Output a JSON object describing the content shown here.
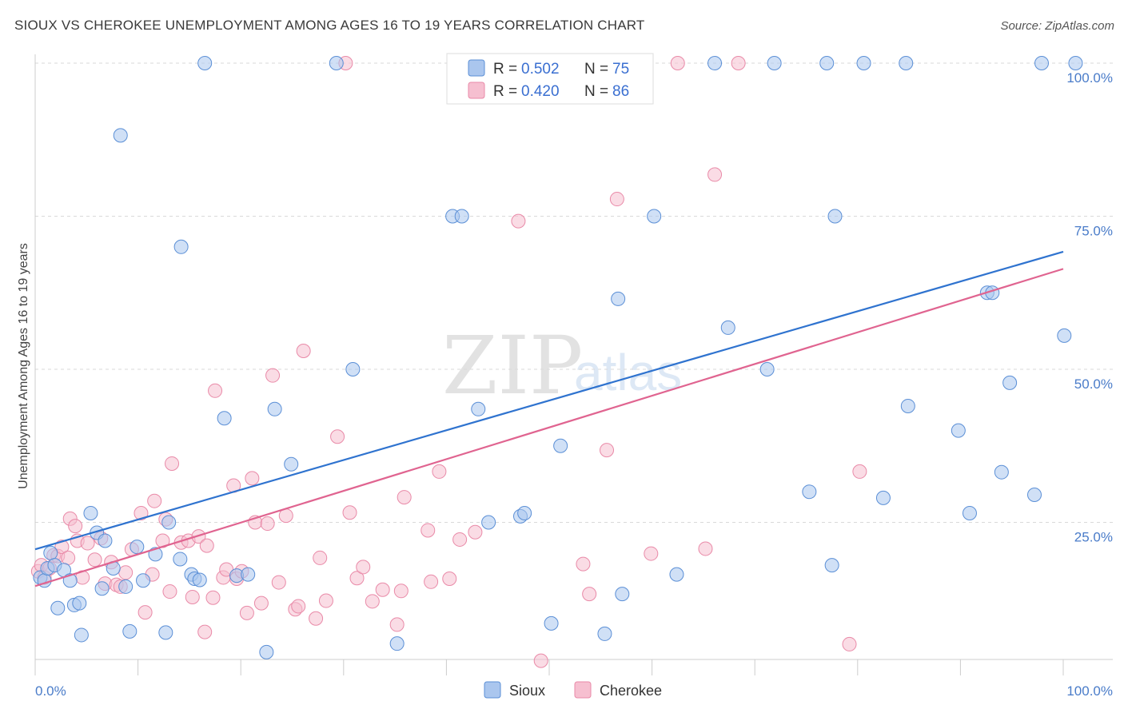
{
  "header": {
    "title": "SIOUX VS CHEROKEE UNEMPLOYMENT AMONG AGES 16 TO 19 YEARS CORRELATION CHART",
    "source": "Source: ZipAtlas.com"
  },
  "watermark": {
    "zip": "ZIP",
    "atlas": "atlas"
  },
  "legend": {
    "r_label": "R =",
    "n_label": "N =",
    "sioux": {
      "r": "0.502",
      "n": "75"
    },
    "cherokee": {
      "r": "0.420",
      "n": "86"
    }
  },
  "colors": {
    "sioux_fill": "#aac6ee",
    "sioux_stroke": "#5b8fd6",
    "sioux_line": "#2f73cf",
    "cherokee_fill": "#f6bfd0",
    "cherokee_stroke": "#e98aa8",
    "cherokee_line": "#e06490",
    "grid": "#d9d9d9",
    "tick_label": "#4a7cc9"
  },
  "chart_data": {
    "type": "scatter",
    "title": "SIOUX VS CHEROKEE UNEMPLOYMENT AMONG AGES 16 TO 19 YEARS CORRELATION CHART",
    "xlabel": "",
    "ylabel": "Unemployment Among Ages 16 to 19 years",
    "xlim": [
      0,
      100
    ],
    "ylim": [
      0,
      100
    ],
    "x_tick_labels": [
      "0.0%",
      "100.0%"
    ],
    "y_tick_labels": [
      "25.0%",
      "50.0%",
      "75.0%",
      "100.0%"
    ],
    "y_ticks": [
      25,
      50,
      75,
      100
    ],
    "grid": true,
    "legend_position": "top-center",
    "series": [
      {
        "name": "Sioux",
        "trend": [
          [
            0,
            20.6
          ],
          [
            100,
            69.2
          ]
        ],
        "points": [
          [
            0.5,
            16
          ],
          [
            0.9,
            15.5
          ],
          [
            1.2,
            17.5
          ],
          [
            1.5,
            20
          ],
          [
            1.9,
            18
          ],
          [
            2.2,
            11
          ],
          [
            2.8,
            17.2
          ],
          [
            3.4,
            15.5
          ],
          [
            3.8,
            11.5
          ],
          [
            4.3,
            11.8
          ],
          [
            4.5,
            6.6
          ],
          [
            5.4,
            26.5
          ],
          [
            6.0,
            23.3
          ],
          [
            6.5,
            14.2
          ],
          [
            6.8,
            22
          ],
          [
            7.6,
            17.5
          ],
          [
            8.3,
            88.2
          ],
          [
            8.8,
            14.5
          ],
          [
            9.2,
            7.2
          ],
          [
            9.9,
            21
          ],
          [
            10.5,
            15.5
          ],
          [
            11.7,
            19.8
          ],
          [
            12.7,
            7
          ],
          [
            13.0,
            25
          ],
          [
            14.1,
            19
          ],
          [
            14.2,
            70
          ],
          [
            15.2,
            16.5
          ],
          [
            15.5,
            15.8
          ],
          [
            16.0,
            15.6
          ],
          [
            16.5,
            100
          ],
          [
            18.4,
            42
          ],
          [
            19.6,
            16.3
          ],
          [
            20.7,
            16.5
          ],
          [
            22.5,
            3.8
          ],
          [
            23.3,
            43.5
          ],
          [
            24.9,
            34.5
          ],
          [
            29.3,
            100
          ],
          [
            30.9,
            50
          ],
          [
            35.2,
            5.2
          ],
          [
            40.6,
            75
          ],
          [
            41.5,
            75
          ],
          [
            43.1,
            43.5
          ],
          [
            44.1,
            25
          ],
          [
            47.2,
            26
          ],
          [
            47.6,
            26.5
          ],
          [
            50.2,
            8.5
          ],
          [
            51.1,
            37.5
          ],
          [
            55.4,
            6.8
          ],
          [
            56.1,
            100
          ],
          [
            56.7,
            61.5
          ],
          [
            57.1,
            13.3
          ],
          [
            60.2,
            75
          ],
          [
            62.4,
            16.5
          ],
          [
            66.1,
            100
          ],
          [
            67.4,
            56.8
          ],
          [
            71.2,
            50
          ],
          [
            71.9,
            100
          ],
          [
            75.3,
            30
          ],
          [
            77.0,
            100
          ],
          [
            77.5,
            18
          ],
          [
            77.8,
            75
          ],
          [
            80.6,
            100
          ],
          [
            82.5,
            29
          ],
          [
            84.7,
            100
          ],
          [
            84.9,
            44
          ],
          [
            89.8,
            40
          ],
          [
            90.9,
            26.5
          ],
          [
            92.6,
            62.5
          ],
          [
            93.1,
            62.5
          ],
          [
            94.0,
            33.2
          ],
          [
            94.8,
            47.8
          ],
          [
            97.2,
            29.5
          ],
          [
            97.9,
            100
          ],
          [
            100.1,
            55.5
          ],
          [
            101.2,
            100
          ]
        ]
      },
      {
        "name": "Cherokee",
        "trend": [
          [
            0,
            14.6
          ],
          [
            100,
            66.4
          ]
        ],
        "points": [
          [
            0.3,
            17
          ],
          [
            0.6,
            18
          ],
          [
            0.9,
            16
          ],
          [
            1.4,
            17.5
          ],
          [
            1.8,
            19.6
          ],
          [
            2.2,
            19.5
          ],
          [
            2.6,
            21
          ],
          [
            3.2,
            19.2
          ],
          [
            3.4,
            25.6
          ],
          [
            3.9,
            24.4
          ],
          [
            4.1,
            22
          ],
          [
            4.6,
            16
          ],
          [
            5.1,
            21.6
          ],
          [
            5.8,
            18.9
          ],
          [
            6.4,
            22.4
          ],
          [
            6.8,
            15
          ],
          [
            7.4,
            18.5
          ],
          [
            7.9,
            14.8
          ],
          [
            8.3,
            14.5
          ],
          [
            8.8,
            16.8
          ],
          [
            9.4,
            20.6
          ],
          [
            10.3,
            26.5
          ],
          [
            10.7,
            10.3
          ],
          [
            11.4,
            16.5
          ],
          [
            11.6,
            28.5
          ],
          [
            12.4,
            22
          ],
          [
            12.7,
            25.5
          ],
          [
            13.1,
            13.7
          ],
          [
            13.3,
            34.6
          ],
          [
            14.2,
            21.7
          ],
          [
            14.9,
            22
          ],
          [
            15.3,
            12.8
          ],
          [
            15.9,
            22.7
          ],
          [
            16.5,
            7.1
          ],
          [
            16.7,
            21.2
          ],
          [
            17.3,
            12.7
          ],
          [
            17.5,
            46.5
          ],
          [
            18.3,
            16
          ],
          [
            18.6,
            17.3
          ],
          [
            19.3,
            31
          ],
          [
            19.6,
            15.8
          ],
          [
            20.1,
            17
          ],
          [
            20.6,
            10.2
          ],
          [
            21.1,
            32.2
          ],
          [
            21.4,
            25
          ],
          [
            22.0,
            11.8
          ],
          [
            22.6,
            24.8
          ],
          [
            23.1,
            49
          ],
          [
            23.7,
            15.2
          ],
          [
            24.4,
            26.1
          ],
          [
            25.3,
            10.8
          ],
          [
            25.6,
            11.3
          ],
          [
            26.1,
            53
          ],
          [
            27.3,
            9.3
          ],
          [
            27.7,
            19.2
          ],
          [
            28.3,
            12.2
          ],
          [
            29.4,
            39
          ],
          [
            30.2,
            100
          ],
          [
            30.6,
            26.6
          ],
          [
            31.3,
            15.9
          ],
          [
            31.9,
            17.7
          ],
          [
            32.8,
            12.1
          ],
          [
            33.8,
            14
          ],
          [
            35.2,
            8.3
          ],
          [
            35.6,
            13.8
          ],
          [
            35.9,
            29.1
          ],
          [
            38.2,
            23.7
          ],
          [
            38.5,
            15.3
          ],
          [
            39.3,
            33.3
          ],
          [
            40.3,
            15.8
          ],
          [
            41.3,
            22.2
          ],
          [
            42.8,
            23.4
          ],
          [
            47.0,
            74.2
          ],
          [
            49.2,
            2.4
          ],
          [
            53.3,
            18.2
          ],
          [
            53.9,
            13.3
          ],
          [
            55.6,
            36.8
          ],
          [
            56.6,
            77.8
          ],
          [
            58.2,
            100
          ],
          [
            59.9,
            19.9
          ],
          [
            62.5,
            100
          ],
          [
            65.2,
            20.7
          ],
          [
            66.1,
            81.8
          ],
          [
            68.4,
            100
          ],
          [
            79.2,
            5.1
          ],
          [
            80.2,
            33.3
          ]
        ]
      }
    ]
  },
  "bottom_legend": [
    "Sioux",
    "Cherokee"
  ]
}
